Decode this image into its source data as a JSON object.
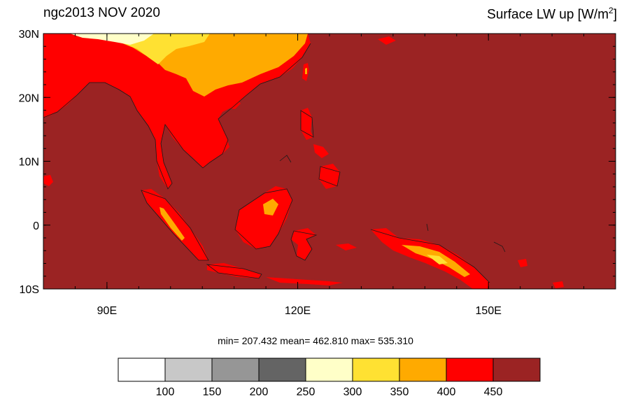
{
  "header": {
    "left_title": "ngc2013 NOV 2020",
    "right_title_prefix": "Surface LW up [W/m",
    "right_title_sup": "2",
    "right_title_suffix": "]"
  },
  "axes": {
    "y_ticks": [
      {
        "label": "30N",
        "lat": 30
      },
      {
        "label": "20N",
        "lat": 20
      },
      {
        "label": "10N",
        "lat": 10
      },
      {
        "label": "0",
        "lat": 0
      },
      {
        "label": "10S",
        "lat": -10
      }
    ],
    "x_ticks": [
      {
        "label": "90E",
        "lon": 90
      },
      {
        "label": "120E",
        "lon": 120
      },
      {
        "label": "150E",
        "lon": 150
      }
    ],
    "lon_range": [
      80,
      170
    ],
    "lat_range": [
      -10,
      30
    ]
  },
  "stats": {
    "text": "min= 207.432  mean= 462.810  max= 535.310",
    "min": 207.432,
    "mean": 462.81,
    "max": 535.31
  },
  "colorbar": {
    "colors": [
      "#ffffff",
      "#c8c8c8",
      "#969696",
      "#646464",
      "#ffffc8",
      "#ffe132",
      "#ffaa00",
      "#ff0000",
      "#9b2323"
    ],
    "labels": [
      "100",
      "150",
      "200",
      "250",
      "300",
      "350",
      "400",
      "450"
    ]
  },
  "palette": {
    "ocean": "#9b2323",
    "warm_land": "#ff0000",
    "high_land": "#ffaa00",
    "cold_land": "#ffe132",
    "coldest": "#ffffc8"
  }
}
